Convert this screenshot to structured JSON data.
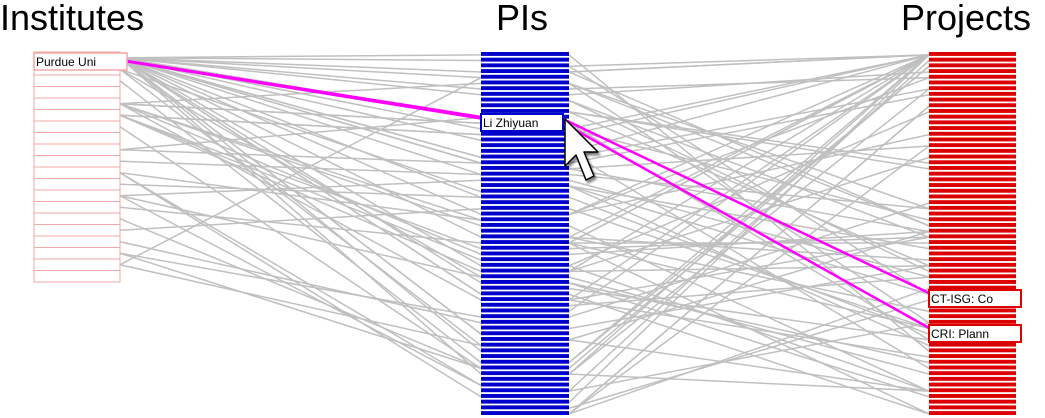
{
  "columns": {
    "institutes": {
      "title": "Institutes",
      "color": "#f4a7a7",
      "row_count": 20
    },
    "pis": {
      "title": "PIs",
      "color": "#0000cc",
      "row_count": 64
    },
    "projects": {
      "title": "Projects",
      "color": "#dd0000",
      "row_count": 64
    }
  },
  "selection": {
    "institute": "Purdue Uni",
    "pi": "Li Zhiyuan",
    "projects": [
      "CT-ISG: Co",
      "CRI: Plann"
    ],
    "highlight_color": "#ff00ff"
  },
  "link_color": "#c0c0c0",
  "cursor": "arrow-pointer-icon"
}
